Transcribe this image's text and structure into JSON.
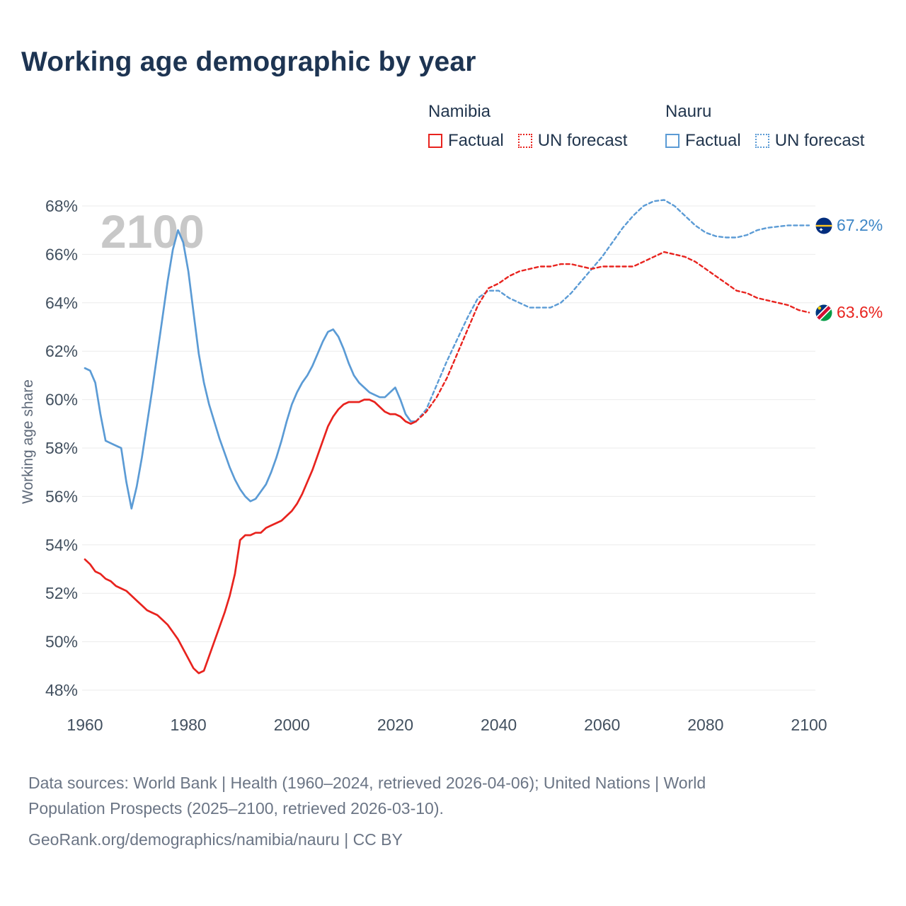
{
  "title": "Working age demographic by year",
  "legend": {
    "groups": [
      {
        "name": "Namibia",
        "color": "#e8231e",
        "items": [
          {
            "label": "Factual",
            "style": "solid"
          },
          {
            "label": "UN forecast",
            "style": "dotted"
          }
        ]
      },
      {
        "name": "Nauru",
        "color": "#5b9bd5",
        "items": [
          {
            "label": "Factual",
            "style": "solid"
          },
          {
            "label": "UN forecast",
            "style": "dotted"
          }
        ]
      }
    ]
  },
  "colors": {
    "title": "#1d3452",
    "namibia": "#e8231e",
    "nauru": "#5b9bd5",
    "nauru_label": "#3d86c6",
    "axis": "#42505f",
    "grid": "#ebebeb",
    "watermark": "#c8c8c8",
    "footer": "#6b7585"
  },
  "chart_data": {
    "type": "line",
    "title": "Working age demographic by year",
    "xlabel": "",
    "ylabel": "Working age share",
    "watermark": "2100",
    "xlim": [
      1960,
      2100
    ],
    "ylim": [
      48,
      68
    ],
    "grid": "horizontal-only",
    "legend_position": "top-right",
    "x_ticks": [
      1960,
      1980,
      2000,
      2020,
      2040,
      2060,
      2080,
      2100
    ],
    "y_ticks": [
      48,
      50,
      52,
      54,
      56,
      58,
      60,
      62,
      64,
      66,
      68
    ],
    "series": [
      {
        "id": "nauru-factual",
        "name": "Nauru Factual",
        "color": "#5b9bd5",
        "dash": false,
        "points": [
          [
            1960,
            61.3
          ],
          [
            1961,
            61.2
          ],
          [
            1962,
            60.7
          ],
          [
            1963,
            59.4
          ],
          [
            1964,
            58.3
          ],
          [
            1965,
            58.2
          ],
          [
            1966,
            58.1
          ],
          [
            1967,
            58.0
          ],
          [
            1968,
            56.6
          ],
          [
            1969,
            55.5
          ],
          [
            1970,
            56.4
          ],
          [
            1971,
            57.6
          ],
          [
            1972,
            59.0
          ],
          [
            1973,
            60.4
          ],
          [
            1974,
            61.9
          ],
          [
            1975,
            63.4
          ],
          [
            1976,
            64.9
          ],
          [
            1977,
            66.2
          ],
          [
            1978,
            67.0
          ],
          [
            1979,
            66.5
          ],
          [
            1980,
            65.3
          ],
          [
            1981,
            63.6
          ],
          [
            1982,
            61.9
          ],
          [
            1983,
            60.7
          ],
          [
            1984,
            59.8
          ],
          [
            1985,
            59.1
          ],
          [
            1986,
            58.4
          ],
          [
            1987,
            57.8
          ],
          [
            1988,
            57.2
          ],
          [
            1989,
            56.7
          ],
          [
            1990,
            56.3
          ],
          [
            1991,
            56.0
          ],
          [
            1992,
            55.8
          ],
          [
            1993,
            55.9
          ],
          [
            1994,
            56.2
          ],
          [
            1995,
            56.5
          ],
          [
            1996,
            57.0
          ],
          [
            1997,
            57.6
          ],
          [
            1998,
            58.3
          ],
          [
            1999,
            59.1
          ],
          [
            2000,
            59.8
          ],
          [
            2001,
            60.3
          ],
          [
            2002,
            60.7
          ],
          [
            2003,
            61.0
          ],
          [
            2004,
            61.4
          ],
          [
            2005,
            61.9
          ],
          [
            2006,
            62.4
          ],
          [
            2007,
            62.8
          ],
          [
            2008,
            62.9
          ],
          [
            2009,
            62.6
          ],
          [
            2010,
            62.1
          ],
          [
            2011,
            61.5
          ],
          [
            2012,
            61.0
          ],
          [
            2013,
            60.7
          ],
          [
            2014,
            60.5
          ],
          [
            2015,
            60.3
          ],
          [
            2016,
            60.2
          ],
          [
            2017,
            60.1
          ],
          [
            2018,
            60.1
          ],
          [
            2019,
            60.3
          ],
          [
            2020,
            60.5
          ],
          [
            2021,
            60.0
          ],
          [
            2022,
            59.4
          ],
          [
            2023,
            59.1
          ],
          [
            2024,
            59.1
          ]
        ]
      },
      {
        "id": "namibia-factual",
        "name": "Namibia Factual",
        "color": "#e8231e",
        "dash": false,
        "points": [
          [
            1960,
            53.4
          ],
          [
            1961,
            53.2
          ],
          [
            1962,
            52.9
          ],
          [
            1963,
            52.8
          ],
          [
            1964,
            52.6
          ],
          [
            1965,
            52.5
          ],
          [
            1966,
            52.3
          ],
          [
            1967,
            52.2
          ],
          [
            1968,
            52.1
          ],
          [
            1969,
            51.9
          ],
          [
            1970,
            51.7
          ],
          [
            1971,
            51.5
          ],
          [
            1972,
            51.3
          ],
          [
            1973,
            51.2
          ],
          [
            1974,
            51.1
          ],
          [
            1975,
            50.9
          ],
          [
            1976,
            50.7
          ],
          [
            1977,
            50.4
          ],
          [
            1978,
            50.1
          ],
          [
            1979,
            49.7
          ],
          [
            1980,
            49.3
          ],
          [
            1981,
            48.9
          ],
          [
            1982,
            48.7
          ],
          [
            1983,
            48.8
          ],
          [
            1984,
            49.4
          ],
          [
            1985,
            50.0
          ],
          [
            1986,
            50.6
          ],
          [
            1987,
            51.2
          ],
          [
            1988,
            51.9
          ],
          [
            1989,
            52.8
          ],
          [
            1990,
            54.2
          ],
          [
            1991,
            54.4
          ],
          [
            1992,
            54.4
          ],
          [
            1993,
            54.5
          ],
          [
            1994,
            54.5
          ],
          [
            1995,
            54.7
          ],
          [
            1996,
            54.8
          ],
          [
            1997,
            54.9
          ],
          [
            1998,
            55.0
          ],
          [
            1999,
            55.2
          ],
          [
            2000,
            55.4
          ],
          [
            2001,
            55.7
          ],
          [
            2002,
            56.1
          ],
          [
            2003,
            56.6
          ],
          [
            2004,
            57.1
          ],
          [
            2005,
            57.7
          ],
          [
            2006,
            58.3
          ],
          [
            2007,
            58.9
          ],
          [
            2008,
            59.3
          ],
          [
            2009,
            59.6
          ],
          [
            2010,
            59.8
          ],
          [
            2011,
            59.9
          ],
          [
            2012,
            59.9
          ],
          [
            2013,
            59.9
          ],
          [
            2014,
            60.0
          ],
          [
            2015,
            60.0
          ],
          [
            2016,
            59.9
          ],
          [
            2017,
            59.7
          ],
          [
            2018,
            59.5
          ],
          [
            2019,
            59.4
          ],
          [
            2020,
            59.4
          ],
          [
            2021,
            59.3
          ],
          [
            2022,
            59.1
          ],
          [
            2023,
            59.0
          ],
          [
            2024,
            59.1
          ]
        ]
      },
      {
        "id": "nauru-forecast",
        "name": "Nauru UN forecast",
        "color": "#5b9bd5",
        "dash": true,
        "points": [
          [
            2024,
            59.1
          ],
          [
            2026,
            59.6
          ],
          [
            2028,
            60.6
          ],
          [
            2030,
            61.6
          ],
          [
            2032,
            62.5
          ],
          [
            2034,
            63.4
          ],
          [
            2036,
            64.2
          ],
          [
            2038,
            64.5
          ],
          [
            2040,
            64.5
          ],
          [
            2042,
            64.2
          ],
          [
            2044,
            64.0
          ],
          [
            2046,
            63.8
          ],
          [
            2048,
            63.8
          ],
          [
            2050,
            63.8
          ],
          [
            2052,
            64.0
          ],
          [
            2054,
            64.4
          ],
          [
            2056,
            64.9
          ],
          [
            2058,
            65.4
          ],
          [
            2060,
            65.9
          ],
          [
            2062,
            66.5
          ],
          [
            2064,
            67.1
          ],
          [
            2066,
            67.6
          ],
          [
            2068,
            68.0
          ],
          [
            2070,
            68.2
          ],
          [
            2072,
            68.25
          ],
          [
            2074,
            68.0
          ],
          [
            2076,
            67.6
          ],
          [
            2078,
            67.2
          ],
          [
            2080,
            66.9
          ],
          [
            2082,
            66.75
          ],
          [
            2084,
            66.7
          ],
          [
            2086,
            66.7
          ],
          [
            2088,
            66.8
          ],
          [
            2090,
            67.0
          ],
          [
            2092,
            67.1
          ],
          [
            2094,
            67.15
          ],
          [
            2096,
            67.2
          ],
          [
            2098,
            67.2
          ],
          [
            2100,
            67.2
          ]
        ]
      },
      {
        "id": "namibia-forecast",
        "name": "Namibia UN forecast",
        "color": "#e8231e",
        "dash": true,
        "points": [
          [
            2024,
            59.1
          ],
          [
            2026,
            59.5
          ],
          [
            2028,
            60.1
          ],
          [
            2030,
            60.9
          ],
          [
            2032,
            61.9
          ],
          [
            2034,
            62.9
          ],
          [
            2036,
            63.9
          ],
          [
            2038,
            64.6
          ],
          [
            2040,
            64.8
          ],
          [
            2042,
            65.1
          ],
          [
            2044,
            65.3
          ],
          [
            2046,
            65.4
          ],
          [
            2048,
            65.5
          ],
          [
            2050,
            65.5
          ],
          [
            2052,
            65.6
          ],
          [
            2054,
            65.6
          ],
          [
            2056,
            65.5
          ],
          [
            2058,
            65.4
          ],
          [
            2060,
            65.5
          ],
          [
            2062,
            65.5
          ],
          [
            2064,
            65.5
          ],
          [
            2066,
            65.5
          ],
          [
            2068,
            65.7
          ],
          [
            2070,
            65.9
          ],
          [
            2072,
            66.1
          ],
          [
            2074,
            66.0
          ],
          [
            2076,
            65.9
          ],
          [
            2078,
            65.7
          ],
          [
            2080,
            65.4
          ],
          [
            2082,
            65.1
          ],
          [
            2084,
            64.8
          ],
          [
            2086,
            64.5
          ],
          [
            2088,
            64.4
          ],
          [
            2090,
            64.2
          ],
          [
            2092,
            64.1
          ],
          [
            2094,
            64.0
          ],
          [
            2096,
            63.9
          ],
          [
            2098,
            63.7
          ],
          [
            2100,
            63.6
          ]
        ]
      }
    ],
    "end_labels": [
      {
        "id": "nauru",
        "series": "Nauru",
        "value": 67.2,
        "text": "67.2%",
        "color": "#3d86c6",
        "flag": "nauru"
      },
      {
        "id": "namibia",
        "series": "Namibia",
        "value": 63.6,
        "text": "63.6%",
        "color": "#e8231e",
        "flag": "namibia"
      }
    ]
  },
  "footer": {
    "lines": [
      "Data sources: World Bank | Health (1960–2024, retrieved 2026-04-06); United Nations | World",
      "Population Prospects (2025–2100, retrieved 2026-03-10).",
      "GeoRank.org/demographics/namibia/nauru | CC BY"
    ]
  }
}
